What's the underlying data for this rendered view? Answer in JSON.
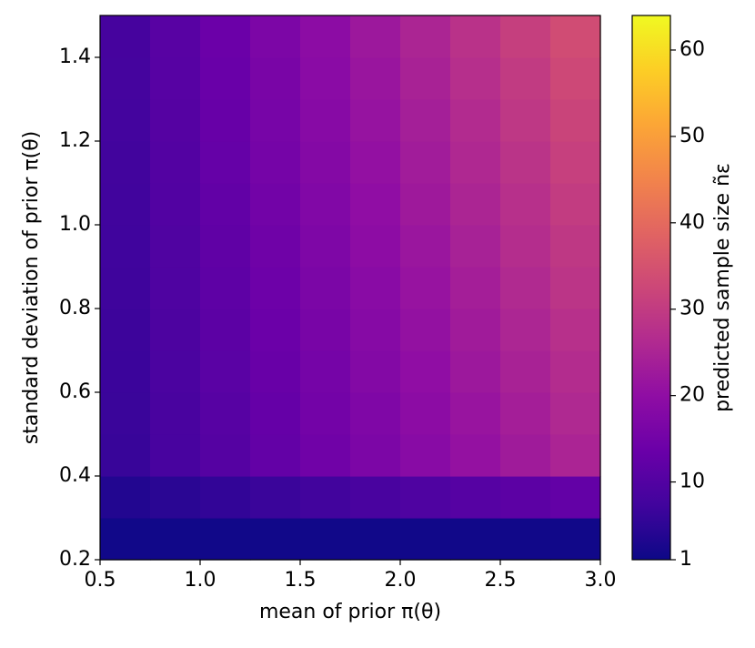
{
  "chart_data": {
    "type": "heatmap",
    "xlabel": "mean of prior π(θ)",
    "ylabel": "standard deviation of prior π(θ)",
    "colorbar_label": "predicted sample size ñε",
    "colormap": "plasma",
    "x": [
      0.625,
      0.875,
      1.125,
      1.375,
      1.625,
      1.875,
      2.125,
      2.375,
      2.625,
      2.875
    ],
    "y": [
      0.25,
      0.35,
      0.45,
      0.55,
      0.65,
      0.75,
      0.85,
      0.95,
      1.05,
      1.15,
      1.25,
      1.35,
      1.45
    ],
    "z": [
      [
        1.5,
        1.5,
        1.5,
        1.5,
        1.5,
        1.5,
        1.5,
        1.5,
        1.5,
        1.5
      ],
      [
        3.5,
        4.5,
        5.5,
        6.5,
        7.5,
        8.5,
        9.5,
        10.5,
        11.5,
        12.5
      ],
      [
        6.2,
        8.3,
        10.4,
        12.5,
        14.6,
        16.7,
        18.7,
        20.8,
        22.9,
        25.0
      ],
      [
        6.4,
        8.6,
        10.7,
        12.9,
        15.1,
        17.2,
        19.4,
        21.5,
        23.7,
        25.9
      ],
      [
        6.6,
        8.8,
        11.1,
        13.3,
        15.5,
        17.8,
        20.0,
        22.3,
        24.5,
        26.7
      ],
      [
        6.8,
        9.1,
        11.4,
        13.7,
        16.0,
        18.3,
        20.7,
        23.0,
        25.3,
        27.6
      ],
      [
        7.0,
        9.4,
        11.7,
        14.1,
        16.5,
        18.9,
        21.3,
        23.7,
        26.1,
        28.5
      ],
      [
        7.2,
        9.6,
        12.1,
        14.5,
        17.0,
        19.5,
        21.9,
        24.4,
        26.9,
        29.3
      ],
      [
        7.3,
        9.9,
        12.4,
        15.0,
        17.5,
        20.0,
        22.6,
        25.1,
        27.6,
        30.2
      ],
      [
        7.5,
        10.1,
        12.8,
        15.4,
        18.0,
        20.6,
        23.2,
        25.8,
        28.4,
        31.0
      ],
      [
        7.7,
        10.4,
        13.1,
        15.8,
        18.5,
        21.2,
        23.8,
        26.5,
        29.2,
        31.9
      ],
      [
        7.9,
        10.7,
        13.4,
        16.2,
        19.0,
        21.7,
        24.5,
        27.3,
        30.0,
        32.8
      ],
      [
        8.1,
        10.9,
        13.8,
        16.6,
        19.4,
        22.3,
        25.1,
        28.0,
        30.8,
        33.6
      ]
    ],
    "xlim": [
      0.5,
      3.0
    ],
    "ylim": [
      0.2,
      1.5
    ],
    "xticks": [
      0.5,
      {
        "value": 1,
        "label": "1.0"
      },
      1.5,
      {
        "value": 2,
        "label": "2.0"
      },
      2.5,
      {
        "value": 3,
        "label": "3.0"
      }
    ],
    "yticks": [
      0.2,
      0.4,
      0.6,
      0.8,
      {
        "value": 1,
        "label": "1.0"
      },
      1.2,
      1.4
    ],
    "zlim": [
      1,
      64
    ],
    "zticks": [
      1,
      10,
      20,
      30,
      40,
      50,
      60
    ]
  }
}
